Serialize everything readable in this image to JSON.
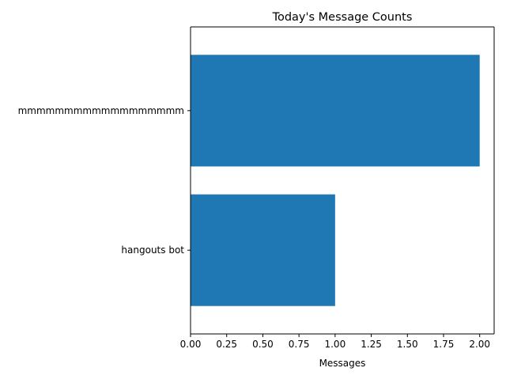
{
  "chart_data": {
    "type": "bar",
    "orientation": "horizontal",
    "title": "Today's Message Counts",
    "xlabel": "Messages",
    "ylabel": "",
    "categories": [
      "hangouts bot",
      "mmmmmmmmmmmmmmmmmm"
    ],
    "values": [
      1,
      2
    ],
    "xlim": [
      0,
      2.1
    ],
    "xticks": [
      "0.00",
      "0.25",
      "0.50",
      "0.75",
      "1.00",
      "1.25",
      "1.50",
      "1.75",
      "2.00"
    ],
    "grid": false,
    "legend": "none",
    "bar_color": "#1f77b4"
  }
}
